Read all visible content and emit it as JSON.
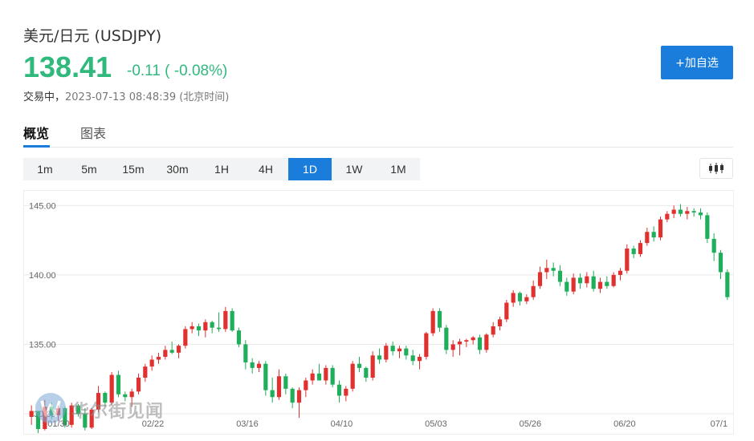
{
  "header": {
    "title": "美元/日元 (USDJPY)",
    "price": "138.41",
    "change": "-0.11 ( -0.08%)",
    "status_label": "交易中，",
    "status_time": "2023-07-13 08:48:39 (北京时间)",
    "add_watchlist_label": "+加自选"
  },
  "tabs": [
    {
      "label": "概览",
      "active": true
    },
    {
      "label": "图表",
      "active": false
    }
  ],
  "periods": [
    {
      "label": "1m"
    },
    {
      "label": "5m"
    },
    {
      "label": "15m"
    },
    {
      "label": "30m"
    },
    {
      "label": "1H"
    },
    {
      "label": "4H"
    },
    {
      "label": "1D",
      "active": true
    },
    {
      "label": "1W"
    },
    {
      "label": "1M"
    }
  ],
  "chart_type_icon": "candlestick-icon",
  "watermark": {
    "text": "华尔街见闻",
    "icon": "wallstreetcn-logo-icon"
  },
  "colors": {
    "up": "#e0312f",
    "down": "#1fae5a",
    "accent": "#1a7ddc",
    "price": "#2fb97c"
  },
  "chart_data": {
    "type": "candlestick",
    "x_tick_labels": [
      "01/30",
      "02/22",
      "03/16",
      "04/10",
      "05/03",
      "05/26",
      "06/20",
      "07/1"
    ],
    "y_tick_labels": [
      "130.00",
      "135.00",
      "140.00",
      "145.00"
    ],
    "ylim": [
      128.5,
      146.0
    ],
    "grid": true,
    "candles": [
      [
        129.8,
        130.6,
        129.2,
        130.2
      ],
      [
        130.2,
        130.2,
        128.6,
        128.9
      ],
      [
        128.9,
        131.0,
        128.8,
        130.5
      ],
      [
        130.5,
        130.8,
        129.6,
        129.9
      ],
      [
        129.9,
        130.6,
        129.5,
        130.4
      ],
      [
        130.4,
        130.5,
        129.0,
        129.2
      ],
      [
        129.2,
        130.8,
        129.0,
        130.6
      ],
      [
        130.6,
        130.7,
        129.8,
        130.0
      ],
      [
        130.0,
        130.4,
        128.8,
        129.0
      ],
      [
        129.0,
        130.4,
        128.9,
        130.3
      ],
      [
        130.3,
        132.0,
        130.1,
        131.5
      ],
      [
        131.5,
        131.6,
        130.5,
        130.8
      ],
      [
        130.8,
        133.0,
        130.6,
        132.8
      ],
      [
        132.8,
        133.1,
        131.2,
        131.4
      ],
      [
        131.4,
        131.6,
        130.9,
        131.2
      ],
      [
        131.2,
        131.8,
        130.5,
        131.6
      ],
      [
        131.6,
        132.9,
        131.4,
        132.6
      ],
      [
        132.6,
        133.6,
        132.3,
        133.4
      ],
      [
        133.4,
        134.2,
        133.1,
        133.9
      ],
      [
        133.9,
        134.4,
        133.6,
        134.1
      ],
      [
        134.1,
        134.9,
        133.9,
        134.6
      ],
      [
        134.6,
        135.2,
        134.3,
        134.4
      ],
      [
        134.4,
        135.0,
        134.0,
        134.9
      ],
      [
        134.9,
        136.3,
        134.7,
        136.1
      ],
      [
        136.1,
        136.6,
        135.8,
        136.3
      ],
      [
        136.3,
        136.5,
        135.6,
        136.0
      ],
      [
        136.0,
        136.8,
        135.5,
        136.6
      ],
      [
        136.6,
        136.7,
        135.8,
        136.2
      ],
      [
        136.2,
        137.3,
        135.9,
        136.1
      ],
      [
        136.1,
        137.7,
        135.9,
        137.4
      ],
      [
        137.4,
        137.6,
        135.9,
        136.0
      ],
      [
        136.0,
        136.2,
        134.8,
        135.0
      ],
      [
        135.0,
        135.3,
        133.2,
        133.7
      ],
      [
        133.7,
        134.0,
        132.9,
        133.3
      ],
      [
        133.3,
        133.8,
        133.0,
        133.6
      ],
      [
        133.6,
        133.8,
        131.3,
        131.7
      ],
      [
        131.7,
        132.6,
        130.8,
        131.2
      ],
      [
        131.2,
        133.2,
        131.0,
        132.7
      ],
      [
        132.7,
        132.9,
        131.4,
        131.8
      ],
      [
        131.8,
        131.9,
        130.4,
        130.8
      ],
      [
        130.8,
        131.9,
        129.7,
        131.7
      ],
      [
        131.7,
        132.6,
        131.2,
        132.4
      ],
      [
        132.4,
        133.2,
        132.1,
        132.9
      ],
      [
        132.9,
        133.6,
        132.5,
        132.4
      ],
      [
        132.4,
        133.5,
        132.1,
        133.3
      ],
      [
        133.3,
        133.5,
        131.9,
        132.1
      ],
      [
        132.1,
        132.4,
        130.8,
        131.3
      ],
      [
        131.3,
        132.0,
        130.9,
        131.8
      ],
      [
        131.8,
        133.8,
        131.6,
        133.6
      ],
      [
        133.6,
        134.1,
        133.0,
        133.3
      ],
      [
        133.3,
        133.4,
        132.3,
        132.6
      ],
      [
        132.6,
        134.5,
        132.4,
        134.2
      ],
      [
        134.2,
        134.7,
        133.6,
        133.9
      ],
      [
        133.9,
        135.1,
        133.7,
        134.9
      ],
      [
        134.9,
        135.2,
        134.2,
        134.5
      ],
      [
        134.5,
        134.9,
        134.0,
        134.7
      ],
      [
        134.7,
        134.9,
        133.9,
        134.2
      ],
      [
        134.2,
        134.6,
        133.5,
        133.8
      ],
      [
        133.8,
        134.3,
        133.2,
        134.1
      ],
      [
        134.1,
        135.9,
        133.9,
        135.8
      ],
      [
        135.8,
        137.6,
        135.6,
        137.4
      ],
      [
        137.4,
        137.6,
        135.9,
        136.2
      ],
      [
        136.2,
        136.4,
        134.3,
        134.6
      ],
      [
        134.6,
        135.3,
        134.1,
        135.0
      ],
      [
        135.0,
        135.4,
        134.2,
        135.2
      ],
      [
        135.2,
        135.4,
        134.8,
        135.3
      ],
      [
        135.3,
        135.6,
        135.0,
        135.5
      ],
      [
        135.5,
        135.7,
        134.3,
        134.6
      ],
      [
        134.6,
        135.8,
        134.4,
        135.7
      ],
      [
        135.7,
        136.6,
        135.5,
        136.3
      ],
      [
        136.3,
        137.0,
        136.0,
        136.8
      ],
      [
        136.8,
        138.2,
        136.6,
        138.0
      ],
      [
        138.0,
        138.9,
        137.7,
        138.7
      ],
      [
        138.7,
        138.8,
        137.8,
        138.1
      ],
      [
        138.1,
        138.6,
        137.9,
        138.4
      ],
      [
        138.4,
        139.6,
        138.2,
        139.2
      ],
      [
        139.2,
        140.6,
        139.0,
        140.2
      ],
      [
        140.2,
        141.1,
        139.7,
        140.5
      ],
      [
        140.5,
        140.9,
        139.9,
        140.3
      ],
      [
        140.3,
        140.7,
        139.2,
        139.5
      ],
      [
        139.5,
        139.8,
        138.5,
        138.8
      ],
      [
        138.8,
        140.1,
        138.6,
        139.8
      ],
      [
        139.8,
        140.1,
        139.0,
        139.4
      ],
      [
        139.4,
        140.2,
        139.1,
        139.9
      ],
      [
        139.9,
        140.3,
        138.8,
        139.0
      ],
      [
        139.0,
        139.8,
        138.7,
        139.5
      ],
      [
        139.5,
        139.9,
        139.0,
        139.2
      ],
      [
        139.2,
        140.2,
        139.1,
        140.0
      ],
      [
        140.0,
        140.5,
        139.6,
        140.3
      ],
      [
        140.3,
        142.2,
        140.1,
        141.9
      ],
      [
        141.9,
        142.1,
        141.2,
        141.5
      ],
      [
        141.5,
        142.5,
        141.3,
        142.3
      ],
      [
        142.3,
        143.4,
        142.1,
        143.1
      ],
      [
        143.1,
        143.5,
        142.4,
        142.7
      ],
      [
        142.7,
        144.2,
        142.5,
        144.0
      ],
      [
        144.0,
        144.6,
        143.8,
        144.4
      ],
      [
        144.4,
        145.0,
        144.1,
        144.7
      ],
      [
        144.7,
        145.1,
        144.2,
        144.4
      ],
      [
        144.4,
        144.9,
        144.0,
        144.6
      ],
      [
        144.6,
        144.8,
        144.2,
        144.5
      ],
      [
        144.5,
        144.8,
        144.0,
        144.3
      ],
      [
        144.3,
        144.5,
        142.3,
        142.6
      ],
      [
        142.6,
        143.0,
        141.0,
        141.6
      ],
      [
        141.6,
        141.8,
        139.7,
        140.2
      ],
      [
        140.2,
        140.4,
        138.2,
        138.4
      ]
    ]
  }
}
